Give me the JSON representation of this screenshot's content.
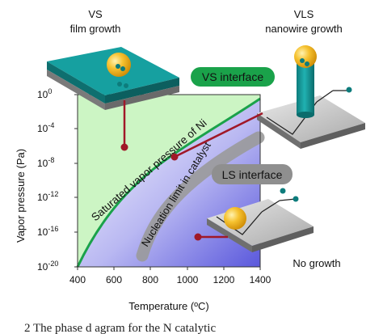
{
  "labels": {
    "vs_title_line1": "VS",
    "vs_title_line2": "film growth",
    "vls_title_line1": "VLS",
    "vls_title_line2": "nanowire growth",
    "vs_interface": "VS interface",
    "ls_interface": "LS interface",
    "no_growth": "No growth",
    "saturated_curve": "Saturated vapor pressure of Ni",
    "nucleation_limit": "Nucleation limit in catalyst"
  },
  "axes": {
    "y_label": "Vapor pressure (Pa)",
    "y_ticks": [
      {
        "base": "10",
        "exp": "0"
      },
      {
        "base": "10",
        "exp": "-4"
      },
      {
        "base": "10",
        "exp": "-8"
      },
      {
        "base": "10",
        "exp": "-12"
      },
      {
        "base": "10",
        "exp": "-16"
      },
      {
        "base": "10",
        "exp": "-20"
      }
    ],
    "x_label": "Temperature (ºC)",
    "x_ticks": [
      "400",
      "600",
      "800",
      "1000",
      "1200",
      "1400"
    ]
  },
  "caption_fragment": "2   The  phase  d agram  for the  N   catalytic",
  "colors": {
    "green_region": "#ccf5c4",
    "green_curve": "#1aa24a",
    "blue_region": "#6f6ee6",
    "connector": "#a01828",
    "catalyst": "#f2b518",
    "nanowire": "#119a9a",
    "substrate_top": "#bfbfbf"
  }
}
